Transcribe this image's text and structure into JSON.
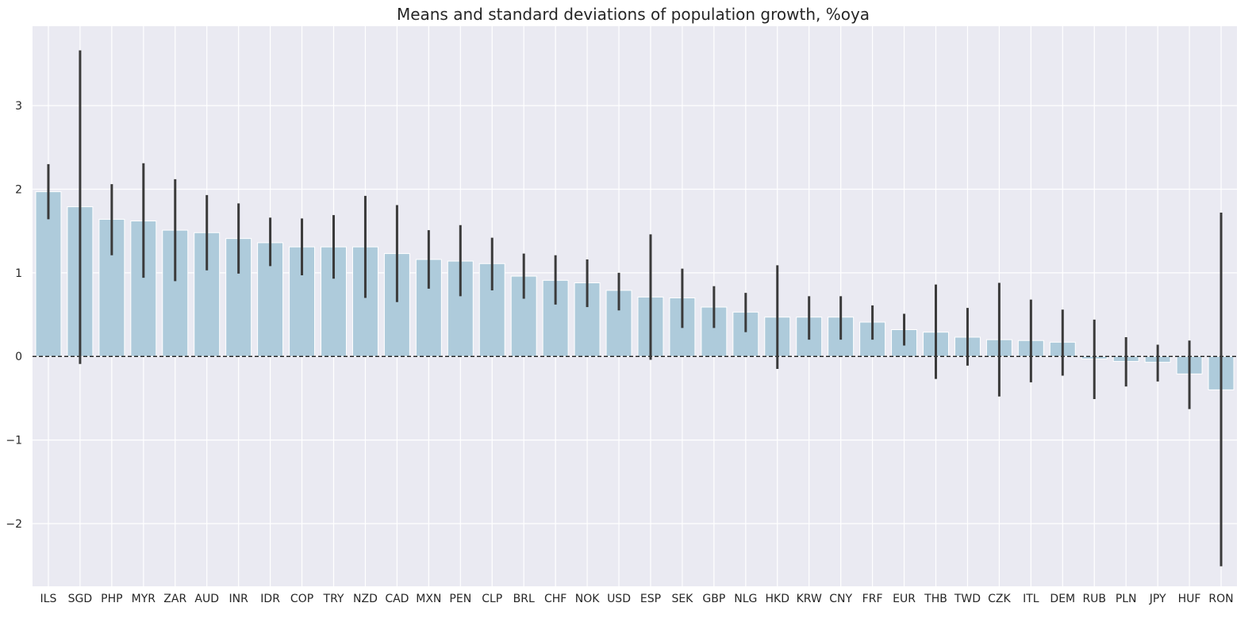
{
  "chart_data": {
    "type": "bar",
    "title": "Means and standard deviations of population growth, %oya",
    "xlabel": "",
    "ylabel": "",
    "ylim": [
      -2.75,
      3.95
    ],
    "yticks": [
      -2,
      -1,
      0,
      1,
      2,
      3
    ],
    "ytick_labels": [
      "−2",
      "−1",
      "0",
      "1",
      "2",
      "3"
    ],
    "grid": true,
    "reference_line": {
      "y": 0,
      "style": "dashed"
    },
    "categories": [
      "ILS",
      "SGD",
      "PHP",
      "MYR",
      "ZAR",
      "AUD",
      "INR",
      "IDR",
      "COP",
      "TRY",
      "NZD",
      "CAD",
      "MXN",
      "PEN",
      "CLP",
      "BRL",
      "CHF",
      "NOK",
      "USD",
      "ESP",
      "SEK",
      "GBP",
      "NLG",
      "HKD",
      "KRW",
      "CNY",
      "FRF",
      "EUR",
      "THB",
      "TWD",
      "CZK",
      "ITL",
      "DEM",
      "RUB",
      "PLN",
      "JPY",
      "HUF",
      "RON"
    ],
    "values": [
      1.97,
      1.79,
      1.64,
      1.62,
      1.51,
      1.48,
      1.41,
      1.36,
      1.31,
      1.31,
      1.31,
      1.23,
      1.16,
      1.14,
      1.11,
      0.96,
      0.91,
      0.88,
      0.79,
      0.71,
      0.7,
      0.59,
      0.53,
      0.47,
      0.47,
      0.47,
      0.41,
      0.32,
      0.29,
      0.23,
      0.2,
      0.19,
      0.17,
      -0.03,
      -0.06,
      -0.07,
      -0.21,
      -0.4
    ],
    "error_low": [
      1.64,
      -0.09,
      1.21,
      0.94,
      0.9,
      1.03,
      0.99,
      1.08,
      0.97,
      0.93,
      0.7,
      0.65,
      0.81,
      0.72,
      0.79,
      0.69,
      0.62,
      0.59,
      0.55,
      -0.04,
      0.34,
      0.34,
      0.29,
      -0.15,
      0.2,
      0.2,
      0.2,
      0.13,
      -0.27,
      -0.11,
      -0.48,
      -0.31,
      -0.23,
      -0.51,
      -0.36,
      -0.3,
      -0.63,
      -2.51
    ],
    "error_high": [
      2.3,
      3.66,
      2.06,
      2.31,
      2.12,
      1.93,
      1.83,
      1.66,
      1.65,
      1.69,
      1.92,
      1.81,
      1.51,
      1.57,
      1.42,
      1.23,
      1.21,
      1.16,
      1.0,
      1.46,
      1.05,
      0.84,
      0.76,
      1.09,
      0.72,
      0.72,
      0.61,
      0.51,
      0.86,
      0.58,
      0.88,
      0.68,
      0.56,
      0.44,
      0.23,
      0.14,
      0.19,
      1.72
    ],
    "colors": {
      "background": "#eaeaf2",
      "grid": "#ffffff",
      "bar": "#aecbdb",
      "error": "#3a3a3a",
      "zero_line": "#000000"
    }
  }
}
